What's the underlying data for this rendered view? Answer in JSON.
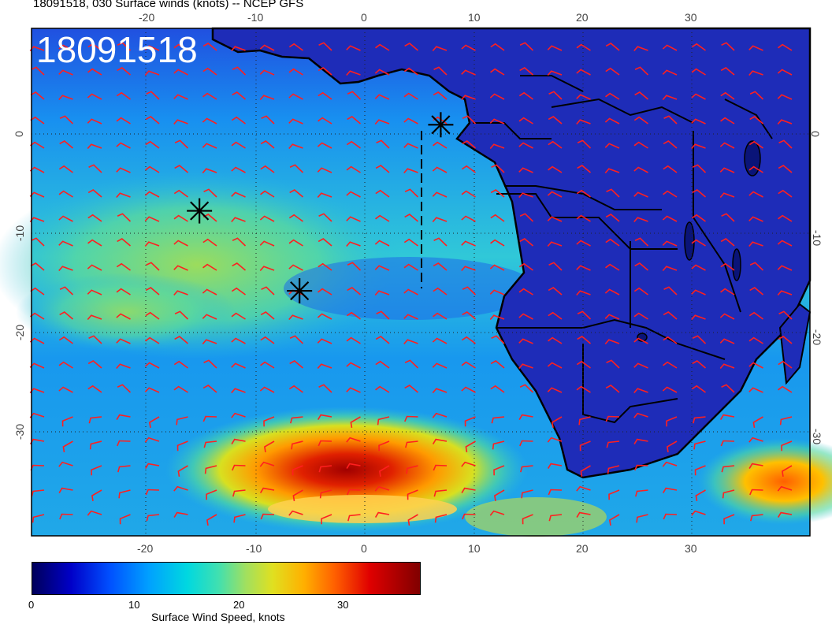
{
  "header": {
    "title": "18091518, 030 Surface winds (knots) -- NCEP GFS",
    "stamp": "18091518"
  },
  "axes": {
    "lon_top": [
      "-20",
      "-10",
      "0",
      "10",
      "20",
      "30"
    ],
    "lon_bottom": [
      "-20",
      "-10",
      "0",
      "10",
      "20",
      "30"
    ],
    "lat_left": [
      "0",
      "-10",
      "-20",
      "-30"
    ],
    "lat_right": [
      "0",
      "-10",
      "-20",
      "-30"
    ],
    "lon_range": [
      -30,
      40
    ],
    "lat_range": [
      -40,
      9.5
    ],
    "grid": "dotted"
  },
  "colorbar": {
    "label": "Surface Wind Speed, knots",
    "ticks": [
      "0",
      "10",
      "20",
      "30"
    ],
    "range": [
      0,
      37
    ]
  },
  "markers": [
    {
      "name": "storm-marker",
      "lon": 6.8,
      "lat": 0.1
    },
    {
      "name": "storm-marker",
      "lon": -14.9,
      "lat": -8.3
    },
    {
      "name": "storm-marker",
      "lon": -5.9,
      "lat": -16.1
    }
  ],
  "colors": {
    "barb": "#ff1f1f",
    "coast": "#000000",
    "ocean_low": "#1e46d8",
    "max_wind": "#c80000"
  }
}
